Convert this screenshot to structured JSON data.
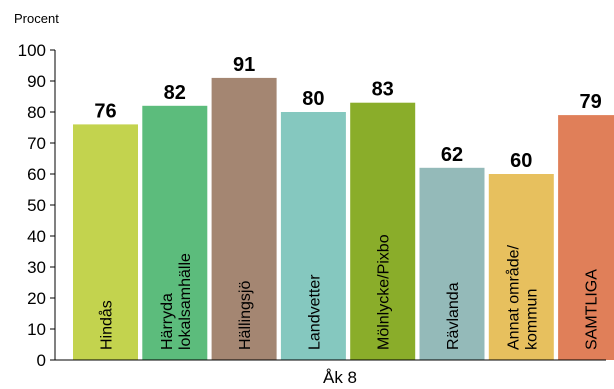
{
  "chart_data": {
    "type": "bar",
    "ylabel": "Procent",
    "xlabel": "Åk 8",
    "ylim": [
      0,
      100
    ],
    "yticks": [
      "0",
      "10",
      "20",
      "30",
      "40",
      "50",
      "60",
      "70",
      "80",
      "90",
      "100"
    ],
    "grid": false,
    "categories": [
      [
        "Hindås"
      ],
      [
        "Härryda",
        "lokalsamhälle"
      ],
      [
        "Hällingsjö"
      ],
      [
        "Landvetter"
      ],
      [
        "Mölnlycke/Pixbo"
      ],
      [
        "Rävlanda"
      ],
      [
        "Annat område/",
        "kommun"
      ],
      [
        "SAMTLIGA"
      ]
    ],
    "values": [
      76,
      82,
      91,
      80,
      83,
      62,
      60,
      79
    ],
    "value_labels": [
      "76",
      "82",
      "91",
      "80",
      "83",
      "62",
      "60",
      "79"
    ],
    "colors": [
      "#c3d34e",
      "#5cbc7c",
      "#a48672",
      "#85c8bf",
      "#8aad2a",
      "#94bab9",
      "#e7c05e",
      "#e07f59"
    ]
  }
}
